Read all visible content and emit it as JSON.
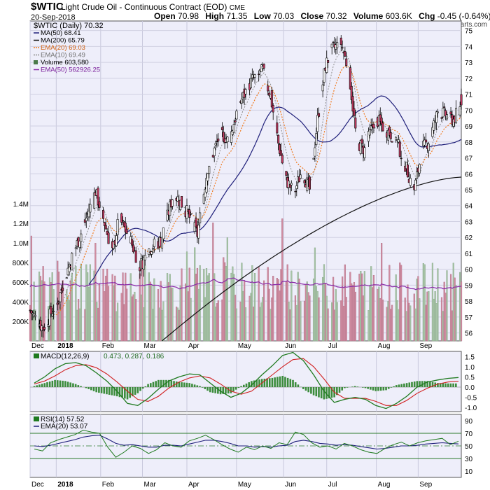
{
  "header": {
    "symbol": "$WTIC",
    "description": "Light Crude Oil - Continuous Contract (EOD)",
    "exchange": "CME",
    "date": "20-Sep-2018",
    "watermark": "@ StockCharts.com",
    "open_label": "Open",
    "open": "70.98",
    "high_label": "High",
    "high": "71.35",
    "low_label": "Low",
    "low": "70.03",
    "close_label": "Close",
    "close": "70.32",
    "volume_label": "Volume",
    "volume": "603.6K",
    "chg_label": "Chg",
    "chg": "-0.45 (-0.64%)"
  },
  "colors": {
    "panel_bg": "#eeeefa",
    "up_candle": "#ffffff",
    "down_candle": "#c83c64",
    "ma50": "#1f1f7a",
    "ma200": "#111111",
    "ema20": "#f07a1e",
    "ema10": "#8c8c8c",
    "volume_up": "#a8c4a8",
    "volume_down": "#d08ca0",
    "volume_ema": "#8a2aa8",
    "macd_line": "#1f7a1f",
    "macd_signal": "#d02020",
    "macd_hist": "#3c8c3c",
    "rsi_line": "#1f7a1f",
    "rsi_ema": "#1f1f7a"
  },
  "chart_data": [
    {
      "type": "candlestick",
      "title": "$WTIC (Daily) 70.32",
      "y_ticks": [
        56,
        57,
        58,
        59,
        60,
        61,
        62,
        63,
        64,
        65,
        66,
        67,
        68,
        69,
        70,
        71,
        72,
        73,
        74,
        75
      ],
      "ylim": [
        55.5,
        75.6
      ],
      "x_tick_labels": [
        "Dec",
        "2018",
        "Feb",
        "Mar",
        "Apr",
        "May",
        "Jun",
        "Jul",
        "Aug",
        "Sep"
      ],
      "x_tick_days": [
        0,
        20,
        54,
        86,
        120,
        158,
        194,
        227,
        265,
        297
      ],
      "days": 330,
      "legend": [
        {
          "label": "MA(50) 68.41",
          "color_key": "ma50",
          "style": "line"
        },
        {
          "label": "MA(200) 65.79",
          "color_key": "ma200",
          "style": "line"
        },
        {
          "label": "EMA(20) 69.03",
          "color_key": "ema20",
          "style": "dotted",
          "text_color": "#d06010"
        },
        {
          "label": "EMA(10) 69.49",
          "color_key": "ema10",
          "style": "dotted",
          "text_color": "#707070"
        },
        {
          "label": "Volume 603,580",
          "color_key": "volume_up",
          "style": "bar"
        },
        {
          "label": "EMA(50) 562926.25",
          "color_key": "volume_ema",
          "style": "line",
          "text_color": "#7a1f9a"
        }
      ],
      "close_anchors": [
        [
          0,
          57.4
        ],
        [
          10,
          56.3
        ],
        [
          22,
          58.2
        ],
        [
          30,
          60.3
        ],
        [
          40,
          62.5
        ],
        [
          50,
          64.9
        ],
        [
          56,
          63.2
        ],
        [
          63,
          61.0
        ],
        [
          68,
          63.2
        ],
        [
          76,
          62.0
        ],
        [
          84,
          60.2
        ],
        [
          92,
          61.4
        ],
        [
          100,
          61.8
        ],
        [
          110,
          64.8
        ],
        [
          120,
          63.6
        ],
        [
          128,
          62.2
        ],
        [
          136,
          66.4
        ],
        [
          146,
          68.6
        ],
        [
          152,
          68.0
        ],
        [
          160,
          70.4
        ],
        [
          170,
          71.9
        ],
        [
          178,
          72.5
        ],
        [
          184,
          70.9
        ],
        [
          190,
          67.9
        ],
        [
          196,
          65.6
        ],
        [
          202,
          64.8
        ],
        [
          208,
          66.2
        ],
        [
          214,
          65.0
        ],
        [
          220,
          69.4
        ],
        [
          226,
          72.8
        ],
        [
          232,
          73.9
        ],
        [
          238,
          74.2
        ],
        [
          244,
          72.4
        ],
        [
          250,
          68.0
        ],
        [
          256,
          67.5
        ],
        [
          264,
          69.5
        ],
        [
          272,
          68.8
        ],
        [
          280,
          68.2
        ],
        [
          288,
          66.3
        ],
        [
          294,
          65.0
        ],
        [
          300,
          67.5
        ],
        [
          306,
          68.2
        ],
        [
          312,
          69.9
        ],
        [
          318,
          69.7
        ],
        [
          324,
          69.4
        ],
        [
          330,
          70.32
        ]
      ],
      "ma200_endpoints": [
        [
          101,
          55.5
        ],
        [
          330,
          65.79
        ]
      ],
      "volume_axis_labels": [
        "200K",
        "400K",
        "600K",
        "800K",
        "1.0M",
        "1.2M",
        "1.4M"
      ],
      "volume_axis_values": [
        200000,
        400000,
        600000,
        800000,
        1000000,
        1200000,
        1400000
      ],
      "volume_max": 1500000
    },
    {
      "type": "line",
      "title": "MACD(12,26,9) 0.473, 0.287, 0.186",
      "legend_macd": "MACD(12,26,9)",
      "legend_values": "0.473, 0.287, 0.186",
      "y_ticks": [
        -1.0,
        -0.5,
        0.0,
        0.5,
        1.0,
        1.5
      ],
      "y_tick_labels": [
        "-1.0",
        "-0.5",
        "0.0",
        "0.5",
        "1.0",
        "1.5"
      ],
      "ylim": [
        -1.2,
        1.75
      ],
      "series": [
        {
          "key": "macd",
          "values": [
            0.2,
            0.5,
            0.9,
            1.15,
            1.2,
            1.05,
            0.7,
            0.3,
            -0.2,
            -0.8,
            -0.9,
            -0.55,
            -0.1,
            0.3,
            0.5,
            0.65,
            0.6,
            0.2,
            -0.2,
            -0.5,
            -0.3,
            0.1,
            0.6,
            1.05,
            1.55,
            1.7,
            1.3,
            0.6,
            -0.2,
            -0.75,
            -0.6,
            -0.5,
            -0.6,
            -0.9,
            -1.05,
            -0.8,
            -0.45,
            0.0,
            0.25,
            0.35,
            0.43,
            0.47
          ]
        },
        {
          "key": "signal",
          "values": [
            0.15,
            0.3,
            0.55,
            0.85,
            1.05,
            1.1,
            0.95,
            0.65,
            0.25,
            -0.2,
            -0.6,
            -0.7,
            -0.45,
            -0.05,
            0.25,
            0.45,
            0.55,
            0.45,
            0.15,
            -0.2,
            -0.35,
            -0.2,
            0.2,
            0.6,
            1.0,
            1.35,
            1.4,
            1.0,
            0.4,
            -0.25,
            -0.55,
            -0.55,
            -0.55,
            -0.7,
            -0.9,
            -0.9,
            -0.65,
            -0.3,
            -0.05,
            0.15,
            0.25,
            0.29
          ]
        }
      ]
    },
    {
      "type": "line",
      "title": "RSI(14) 57.52",
      "legend_rsi": "RSI(14) 57.52",
      "legend_ema": "EMA(20) 53.07",
      "y_ticks": [
        10,
        30,
        50,
        70,
        90
      ],
      "ylim": [
        0,
        100
      ],
      "overbought": 70,
      "oversold": 30,
      "series": [
        {
          "key": "rsi",
          "values": [
            45,
            42,
            55,
            60,
            64,
            68,
            75,
            72,
            70,
            48,
            32,
            40,
            50,
            46,
            38,
            44,
            55,
            50,
            48,
            58,
            62,
            67,
            60,
            52,
            45,
            40,
            48,
            44,
            50,
            46,
            55,
            52,
            72,
            68,
            55,
            48,
            50,
            45,
            54,
            50,
            44,
            40,
            38,
            46,
            52,
            56,
            50,
            55,
            58,
            60,
            62,
            52,
            57.5
          ]
        },
        {
          "key": "ema",
          "values": [
            50,
            49,
            51,
            54,
            57,
            60,
            64,
            66,
            67,
            61,
            54,
            51,
            52,
            50,
            48,
            48,
            51,
            51,
            50,
            53,
            56,
            59,
            59,
            57,
            54,
            50,
            50,
            48,
            49,
            48,
            50,
            51,
            57,
            59,
            57,
            54,
            53,
            51,
            52,
            51,
            49,
            47,
            45,
            46,
            48,
            50,
            50,
            51,
            53,
            54,
            55,
            54,
            53.07
          ]
        }
      ]
    }
  ]
}
